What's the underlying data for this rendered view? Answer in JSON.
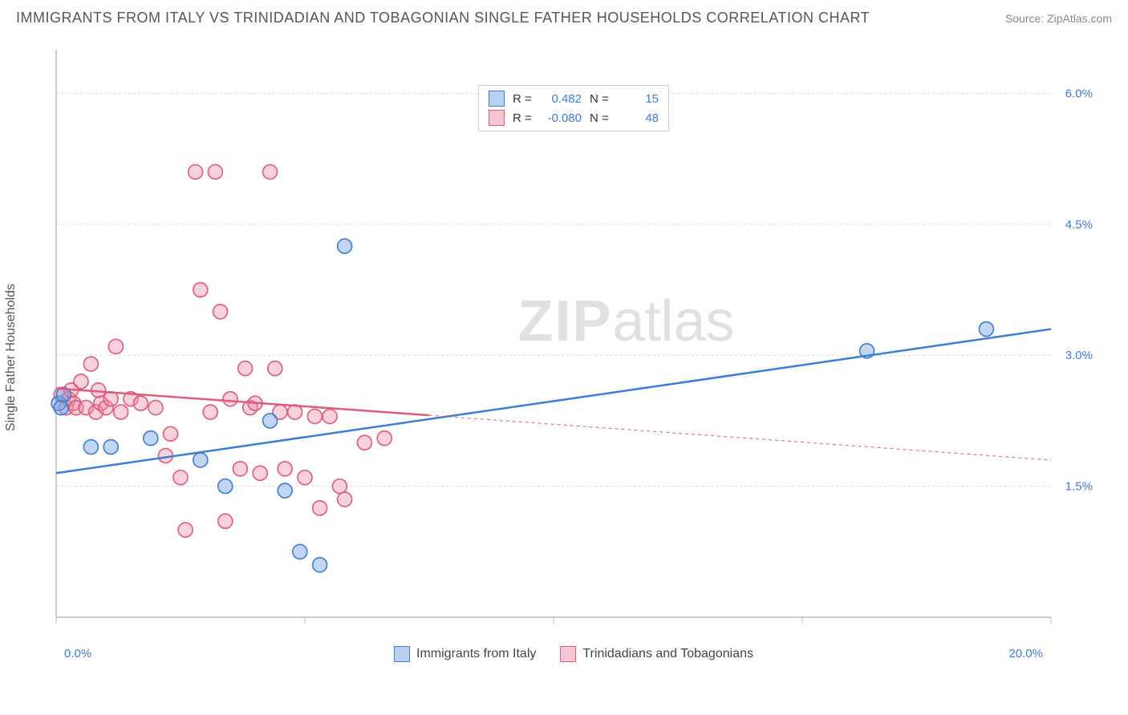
{
  "title": "IMMIGRANTS FROM ITALY VS TRINIDADIAN AND TOBAGONIAN SINGLE FATHER HOUSEHOLDS CORRELATION CHART",
  "source_label": "Source: ZipAtlas.com",
  "ylabel": "Single Father Households",
  "watermark_bold": "ZIP",
  "watermark_rest": "atlas",
  "chart": {
    "type": "scatter",
    "background_color": "#ffffff",
    "grid_color": "#d9d9d9",
    "axis_line_color": "#bbbbbb",
    "label_color": "#3b7dd8",
    "xlim": [
      0,
      20
    ],
    "ylim": [
      0,
      6.5
    ],
    "xtick_positions": [
      0,
      5,
      10,
      15,
      20
    ],
    "xtick_labels": [
      "0.0%",
      "",
      "",
      "",
      "20.0%"
    ],
    "ytick_positions": [
      1.5,
      3.0,
      4.5,
      6.0
    ],
    "ytick_labels": [
      "1.5%",
      "3.0%",
      "4.5%",
      "6.0%"
    ],
    "marker_radius": 9,
    "marker_stroke_width": 1.6,
    "trend_solid_width": 2.5,
    "trend_dash_width": 1,
    "trend_dash_pattern": "4,4",
    "series": [
      {
        "name": "Immigrants from Italy",
        "color_stroke": "#3b7dd8",
        "color_fill": "rgba(120,165,225,0.45)",
        "swatch_fill": "#b9d0ef",
        "swatch_border": "#3b7dd8",
        "r_value": "0.482",
        "n_value": "15",
        "points": [
          [
            0.05,
            2.45
          ],
          [
            0.1,
            2.4
          ],
          [
            0.15,
            2.55
          ],
          [
            0.7,
            1.95
          ],
          [
            1.1,
            1.95
          ],
          [
            1.9,
            2.05
          ],
          [
            4.3,
            2.25
          ],
          [
            2.9,
            1.8
          ],
          [
            3.4,
            1.5
          ],
          [
            4.6,
            1.45
          ],
          [
            4.9,
            0.75
          ],
          [
            5.3,
            0.6
          ],
          [
            5.8,
            4.25
          ],
          [
            16.3,
            3.05
          ],
          [
            18.7,
            3.3
          ]
        ],
        "trend": {
          "x1": 0,
          "y1": 1.65,
          "x2": 20,
          "y2": 3.3,
          "solid_until_x": 20
        }
      },
      {
        "name": "Trinidadians and Tobagonians",
        "color_stroke": "#e05a7a",
        "color_fill": "rgba(235,140,165,0.4)",
        "swatch_fill": "#f5c7d3",
        "swatch_border": "#e05a7a",
        "r_value": "-0.080",
        "n_value": "48",
        "points": [
          [
            0.1,
            2.55
          ],
          [
            0.2,
            2.4
          ],
          [
            0.25,
            2.5
          ],
          [
            0.3,
            2.6
          ],
          [
            0.35,
            2.45
          ],
          [
            0.4,
            2.4
          ],
          [
            0.5,
            2.7
          ],
          [
            0.6,
            2.4
          ],
          [
            0.7,
            2.9
          ],
          [
            0.8,
            2.35
          ],
          [
            0.85,
            2.6
          ],
          [
            0.9,
            2.45
          ],
          [
            1.0,
            2.4
          ],
          [
            1.1,
            2.5
          ],
          [
            1.2,
            3.1
          ],
          [
            1.3,
            2.35
          ],
          [
            1.5,
            2.5
          ],
          [
            1.7,
            2.45
          ],
          [
            2.0,
            2.4
          ],
          [
            2.2,
            1.85
          ],
          [
            2.3,
            2.1
          ],
          [
            2.5,
            1.6
          ],
          [
            2.6,
            1.0
          ],
          [
            2.8,
            5.1
          ],
          [
            2.9,
            3.75
          ],
          [
            3.1,
            2.35
          ],
          [
            3.2,
            5.1
          ],
          [
            3.3,
            3.5
          ],
          [
            3.4,
            1.1
          ],
          [
            3.5,
            2.5
          ],
          [
            3.7,
            1.7
          ],
          [
            3.8,
            2.85
          ],
          [
            3.9,
            2.4
          ],
          [
            4.0,
            2.45
          ],
          [
            4.1,
            1.65
          ],
          [
            4.3,
            5.1
          ],
          [
            4.4,
            2.85
          ],
          [
            4.5,
            2.35
          ],
          [
            4.6,
            1.7
          ],
          [
            4.8,
            2.35
          ],
          [
            5.0,
            1.6
          ],
          [
            5.2,
            2.3
          ],
          [
            5.3,
            1.25
          ],
          [
            5.5,
            2.3
          ],
          [
            5.7,
            1.5
          ],
          [
            5.8,
            1.35
          ],
          [
            6.2,
            2.0
          ],
          [
            6.6,
            2.05
          ]
        ],
        "trend": {
          "x1": 0,
          "y1": 2.62,
          "x2": 20,
          "y2": 1.8,
          "solid_until_x": 7.5
        }
      }
    ]
  },
  "legend_top": {
    "r_label": "R =",
    "n_label": "N ="
  },
  "legend_bottom_labels": [
    "Immigrants from Italy",
    "Trinidadians and Tobagonians"
  ]
}
